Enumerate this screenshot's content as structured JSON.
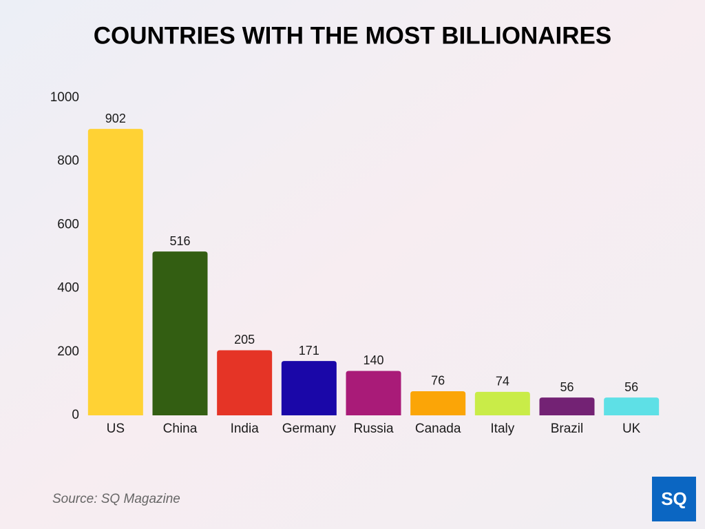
{
  "chart_data": {
    "type": "bar",
    "title": "COUNTRIES WITH THE MOST BILLIONAIRES",
    "categories": [
      "US",
      "China",
      "India",
      "Germany",
      "Russia",
      "Canada",
      "Italy",
      "Brazil",
      "UK"
    ],
    "values": [
      902,
      516,
      205,
      171,
      140,
      76,
      74,
      56,
      56
    ],
    "colors": [
      "#ffd234",
      "#335e12",
      "#e53426",
      "#1a07a8",
      "#a91b78",
      "#fba507",
      "#c9ec48",
      "#732274",
      "#5ee0e6"
    ],
    "ylim": [
      0,
      1000
    ],
    "yticks": [
      0,
      200,
      400,
      600,
      800,
      1000
    ],
    "grid": false,
    "source": "Source: SQ Magazine",
    "logo": "SQ"
  }
}
